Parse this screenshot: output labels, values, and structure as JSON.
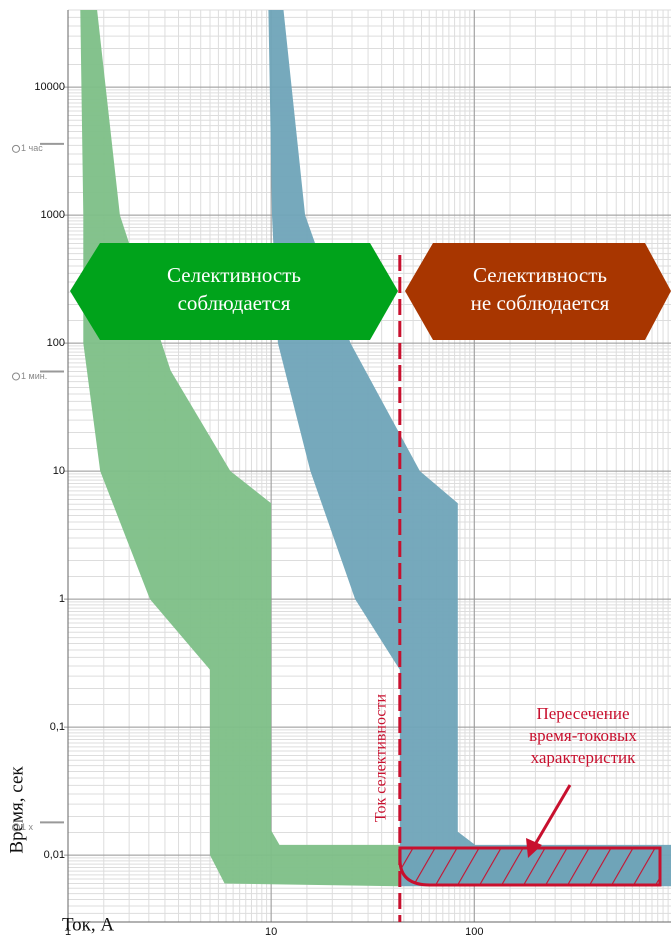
{
  "chart_data": {
    "type": "area",
    "xlabel": "Ток, А",
    "ylabel": "Время, сек",
    "xlog": true,
    "ylog": true,
    "grid": true,
    "minor_grid": true,
    "xlim": [
      1,
      930
    ],
    "ylim": [
      0.003,
      40000
    ],
    "xticks": [
      1,
      10,
      100
    ],
    "yticks": [
      {
        "value": 0.01,
        "label": "0,01"
      },
      {
        "value": 0.1,
        "label": "0,1"
      },
      1,
      10,
      100,
      1000,
      10000
    ],
    "series": [
      {
        "color": "#7dbf87",
        "x": [
          1.15,
          1.19,
          1.19,
          1.44,
          2.53,
          5.0,
          5.0,
          5.9,
          43,
          43,
          11,
          10,
          10,
          6.3,
          3.2,
          1.8,
          1.39
        ],
        "y": [
          40000,
          1000,
          100,
          10,
          1,
          0.28,
          0.01,
          0.006,
          0.0057,
          0.012,
          0.012,
          0.0156,
          5.6,
          10,
          61,
          1000,
          40000
        ]
      },
      {
        "color": "#6fa4b8",
        "x": [
          9.7,
          10.1,
          10.8,
          15.6,
          25.9,
          43,
          43,
          930,
          930,
          101,
          83,
          83,
          54,
          24.6,
          14.7,
          11.5
        ],
        "y": [
          40000,
          1000,
          100,
          10,
          1,
          0.28,
          0.0057,
          0.0057,
          0.012,
          0.012,
          0.0152,
          5.6,
          10,
          100,
          1000,
          40000
        ]
      }
    ],
    "selectivity_current": 43,
    "selectivity_current_label": "Ток селективности",
    "selective": [
      "Селективность",
      "соблюдается"
    ],
    "not_selective": [
      "Селективность",
      "не соблюдается"
    ],
    "intersection": [
      "Пересечение",
      "время-токовых",
      "характеристик"
    ],
    "time_markers": [
      {
        "value": 3600,
        "label": "1 час"
      },
      {
        "value": 60,
        "label": "1 мин."
      },
      {
        "value": 0.018,
        "label": "1 x"
      }
    ]
  }
}
